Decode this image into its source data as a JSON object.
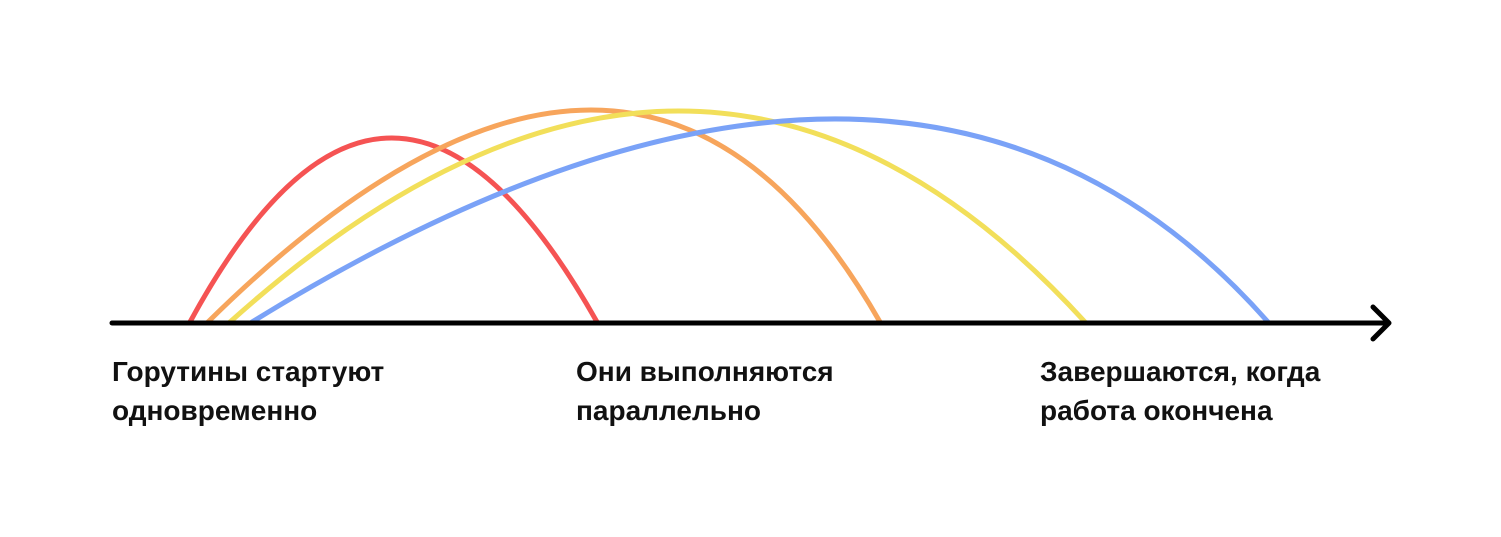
{
  "diagram": {
    "axis_color": "#000000",
    "arcs": [
      {
        "name": "goroutine-1",
        "color": "#f55353"
      },
      {
        "name": "goroutine-2",
        "color": "#f7a55c"
      },
      {
        "name": "goroutine-3",
        "color": "#f2df5a"
      },
      {
        "name": "goroutine-4",
        "color": "#7aa2f7"
      }
    ],
    "labels": {
      "start": [
        "Горутины стартуют",
        "одновременно"
      ],
      "parallel": [
        "Они выполняются",
        "параллельно"
      ],
      "finish": [
        "Завершаются, когда",
        "работа окончена"
      ]
    }
  }
}
